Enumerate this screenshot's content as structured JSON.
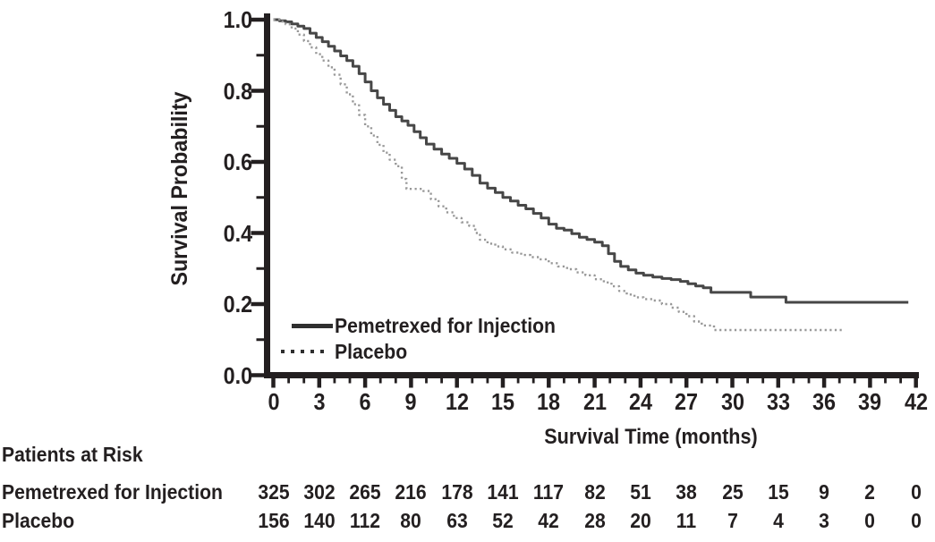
{
  "figure_type": "Kaplan-Meier survival plot",
  "chart_data": {
    "type": "line",
    "subtype": "kaplan-meier-step",
    "xlabel": "Survival Time (months)",
    "ylabel": "Survival Probability",
    "xlim": [
      0,
      42
    ],
    "ylim": [
      0.0,
      1.0
    ],
    "grid": false,
    "legend_position": "inside-lower-left",
    "x_ticks_major": [
      0,
      3,
      6,
      9,
      12,
      15,
      18,
      21,
      24,
      27,
      30,
      33,
      36,
      39,
      42
    ],
    "x_tick_minor_interval": 1,
    "y_tick_labels": [
      "1.0",
      "0.8",
      "0.6",
      "0.4",
      "0.2",
      "0.0"
    ],
    "y_ticks_major": [
      1.0,
      0.8,
      0.6,
      0.4,
      0.2,
      0.0
    ],
    "y_tick_minor_interval": 0.1,
    "axis_color": "#231f20",
    "series": [
      {
        "name": "Pemetrexed for Injection",
        "line_style": "solid",
        "color": "#474747",
        "points": [
          [
            0,
            1.0
          ],
          [
            0.4,
            0.997
          ],
          [
            0.8,
            0.994
          ],
          [
            1.2,
            0.988
          ],
          [
            1.6,
            0.982
          ],
          [
            2.0,
            0.975
          ],
          [
            2.4,
            0.962
          ],
          [
            2.8,
            0.95
          ],
          [
            3.2,
            0.938
          ],
          [
            3.6,
            0.925
          ],
          [
            4.0,
            0.912
          ],
          [
            4.4,
            0.898
          ],
          [
            4.8,
            0.885
          ],
          [
            5.2,
            0.869
          ],
          [
            5.6,
            0.848
          ],
          [
            6.0,
            0.825
          ],
          [
            6.4,
            0.8
          ],
          [
            6.8,
            0.78
          ],
          [
            7.2,
            0.762
          ],
          [
            7.6,
            0.745
          ],
          [
            8.0,
            0.727
          ],
          [
            8.4,
            0.715
          ],
          [
            8.8,
            0.703
          ],
          [
            9.2,
            0.685
          ],
          [
            9.6,
            0.668
          ],
          [
            10.0,
            0.65
          ],
          [
            10.5,
            0.636
          ],
          [
            11.0,
            0.622
          ],
          [
            11.5,
            0.61
          ],
          [
            12.0,
            0.596
          ],
          [
            12.5,
            0.58
          ],
          [
            13.0,
            0.562
          ],
          [
            13.5,
            0.54
          ],
          [
            14.0,
            0.526
          ],
          [
            14.5,
            0.514
          ],
          [
            15.0,
            0.5
          ],
          [
            15.5,
            0.49
          ],
          [
            16.0,
            0.478
          ],
          [
            16.5,
            0.468
          ],
          [
            17.0,
            0.455
          ],
          [
            17.5,
            0.442
          ],
          [
            18.0,
            0.425
          ],
          [
            18.5,
            0.413
          ],
          [
            19.0,
            0.408
          ],
          [
            19.5,
            0.398
          ],
          [
            20.0,
            0.388
          ],
          [
            20.5,
            0.382
          ],
          [
            21.0,
            0.374
          ],
          [
            21.5,
            0.364
          ],
          [
            21.9,
            0.342
          ],
          [
            22.3,
            0.32
          ],
          [
            22.7,
            0.306
          ],
          [
            23.2,
            0.296
          ],
          [
            23.7,
            0.287
          ],
          [
            24.2,
            0.281
          ],
          [
            24.8,
            0.276
          ],
          [
            25.4,
            0.272
          ],
          [
            26.0,
            0.269
          ],
          [
            26.6,
            0.264
          ],
          [
            27.1,
            0.257
          ],
          [
            27.6,
            0.251
          ],
          [
            28.1,
            0.246
          ],
          [
            28.6,
            0.233
          ],
          [
            31.2,
            0.22
          ],
          [
            33.5,
            0.205
          ],
          [
            41.5,
            0.205
          ]
        ]
      },
      {
        "name": "Placebo",
        "line_style": "dotted",
        "color": "#989898",
        "points": [
          [
            0,
            1.0
          ],
          [
            0.4,
            0.995
          ],
          [
            0.8,
            0.987
          ],
          [
            1.2,
            0.975
          ],
          [
            1.6,
            0.958
          ],
          [
            2.0,
            0.94
          ],
          [
            2.4,
            0.922
          ],
          [
            2.8,
            0.903
          ],
          [
            3.2,
            0.885
          ],
          [
            3.6,
            0.866
          ],
          [
            4.0,
            0.845
          ],
          [
            4.4,
            0.818
          ],
          [
            4.8,
            0.79
          ],
          [
            5.2,
            0.762
          ],
          [
            5.6,
            0.732
          ],
          [
            6.0,
            0.7
          ],
          [
            6.4,
            0.674
          ],
          [
            6.8,
            0.648
          ],
          [
            7.2,
            0.626
          ],
          [
            7.6,
            0.606
          ],
          [
            8.0,
            0.588
          ],
          [
            8.4,
            0.552
          ],
          [
            8.7,
            0.524
          ],
          [
            9.8,
            0.518
          ],
          [
            10.3,
            0.495
          ],
          [
            10.8,
            0.475
          ],
          [
            11.3,
            0.458
          ],
          [
            11.8,
            0.442
          ],
          [
            12.3,
            0.43
          ],
          [
            12.8,
            0.42
          ],
          [
            13.2,
            0.4
          ],
          [
            13.5,
            0.381
          ],
          [
            14.0,
            0.37
          ],
          [
            14.5,
            0.362
          ],
          [
            15.0,
            0.354
          ],
          [
            15.6,
            0.345
          ],
          [
            16.2,
            0.338
          ],
          [
            16.8,
            0.332
          ],
          [
            17.4,
            0.326
          ],
          [
            18.0,
            0.315
          ],
          [
            18.6,
            0.306
          ],
          [
            19.2,
            0.298
          ],
          [
            19.8,
            0.289
          ],
          [
            20.4,
            0.281
          ],
          [
            21.0,
            0.27
          ],
          [
            21.6,
            0.261
          ],
          [
            22.1,
            0.25
          ],
          [
            22.6,
            0.237
          ],
          [
            23.1,
            0.227
          ],
          [
            23.6,
            0.219
          ],
          [
            24.2,
            0.214
          ],
          [
            24.8,
            0.21
          ],
          [
            25.4,
            0.2
          ],
          [
            26.0,
            0.19
          ],
          [
            26.5,
            0.178
          ],
          [
            27.0,
            0.166
          ],
          [
            27.5,
            0.151
          ],
          [
            28.0,
            0.14
          ],
          [
            28.8,
            0.127
          ],
          [
            37.2,
            0.127
          ]
        ]
      }
    ]
  },
  "patients_at_risk": {
    "title": "Patients at Risk",
    "time_points": [
      0,
      3,
      6,
      9,
      12,
      15,
      18,
      21,
      24,
      27,
      30,
      33,
      36,
      39,
      42
    ],
    "rows": [
      {
        "label": "Pemetrexed for Injection",
        "counts": [
          325,
          302,
          265,
          216,
          178,
          141,
          117,
          82,
          51,
          38,
          25,
          15,
          9,
          2,
          0
        ]
      },
      {
        "label": "Placebo",
        "counts": [
          156,
          140,
          112,
          80,
          63,
          52,
          42,
          28,
          20,
          11,
          7,
          4,
          3,
          0,
          0
        ]
      }
    ]
  }
}
